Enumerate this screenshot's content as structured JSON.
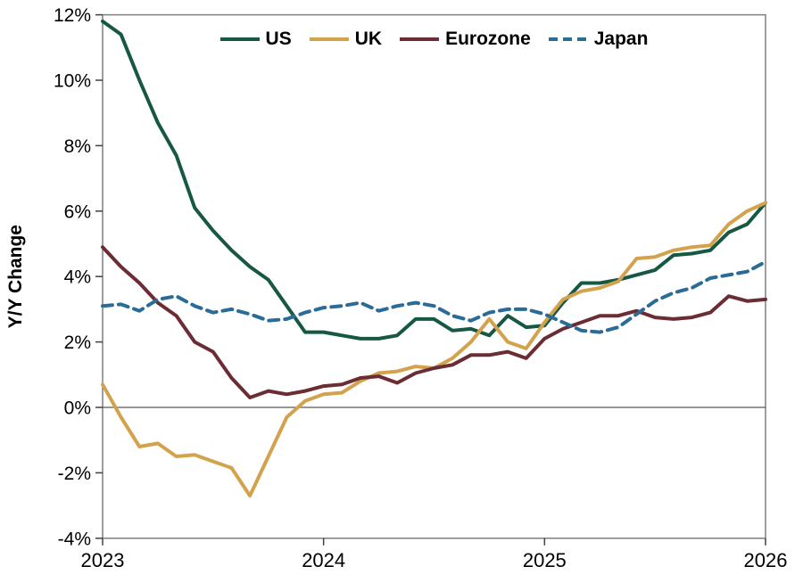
{
  "chart_data": {
    "type": "line",
    "title": "",
    "ylabel": "Y/Y Change",
    "xlabel": "",
    "ylim": [
      -4,
      12
    ],
    "y_tick_values": [
      12,
      10,
      8,
      6,
      4,
      2,
      0,
      -2,
      -4
    ],
    "y_tick_labels": [
      "12%",
      "10%",
      "8%",
      "6%",
      "4%",
      "2%",
      "0%",
      "-2%",
      "-4%"
    ],
    "x_tick_labels": [
      "2023",
      "2024",
      "2025",
      "2026"
    ],
    "x_tick_month_index": [
      0,
      12,
      24,
      36
    ],
    "x_frequency": "monthly",
    "x_start": "2023-01",
    "x_end": "2026-01",
    "x_points": 37,
    "grid": "zero-line-only",
    "legend_position": "top-center-inside",
    "axis_box_color": "#7f7f7f",
    "zero_line_color": "#595959",
    "series": [
      {
        "name": "US",
        "color": "#175845",
        "style": "solid",
        "values": [
          11.8,
          11.4,
          10.0,
          8.7,
          7.7,
          6.1,
          5.4,
          4.8,
          4.3,
          3.9,
          3.1,
          2.3,
          2.3,
          2.2,
          2.1,
          2.1,
          2.2,
          2.7,
          2.7,
          2.35,
          2.4,
          2.2,
          2.8,
          2.45,
          2.5,
          3.2,
          3.8,
          3.8,
          3.9,
          4.05,
          4.2,
          4.65,
          4.7,
          4.8,
          5.35,
          5.6,
          6.25
        ]
      },
      {
        "name": "UK",
        "color": "#d3a24c",
        "style": "solid",
        "values": [
          0.7,
          -0.3,
          -1.2,
          -1.1,
          -1.5,
          -1.45,
          -1.65,
          -1.85,
          -2.7,
          -1.5,
          -0.3,
          0.2,
          0.4,
          0.45,
          0.8,
          1.05,
          1.1,
          1.25,
          1.2,
          1.5,
          2.0,
          2.7,
          2.0,
          1.8,
          2.6,
          3.3,
          3.55,
          3.65,
          3.85,
          4.55,
          4.6,
          4.8,
          4.9,
          4.95,
          5.6,
          6.0,
          6.25
        ]
      },
      {
        "name": "Eurozone",
        "color": "#6b2c33",
        "style": "solid",
        "values": [
          4.9,
          4.3,
          3.8,
          3.2,
          2.8,
          2.0,
          1.7,
          0.9,
          0.3,
          0.5,
          0.4,
          0.5,
          0.65,
          0.7,
          0.9,
          0.95,
          0.75,
          1.05,
          1.2,
          1.3,
          1.6,
          1.6,
          1.7,
          1.5,
          2.1,
          2.4,
          2.6,
          2.8,
          2.8,
          2.95,
          2.75,
          2.7,
          2.75,
          2.9,
          3.4,
          3.25,
          3.3
        ]
      },
      {
        "name": "Japan",
        "color": "#2b6c97",
        "style": "dashed",
        "values": [
          3.1,
          3.15,
          2.95,
          3.3,
          3.4,
          3.1,
          2.9,
          3.0,
          2.85,
          2.65,
          2.7,
          2.9,
          3.05,
          3.1,
          3.2,
          2.95,
          3.1,
          3.2,
          3.1,
          2.8,
          2.65,
          2.9,
          3.0,
          3.0,
          2.85,
          2.6,
          2.35,
          2.3,
          2.45,
          2.85,
          3.25,
          3.5,
          3.65,
          3.95,
          4.05,
          4.15,
          4.45
        ]
      }
    ]
  }
}
